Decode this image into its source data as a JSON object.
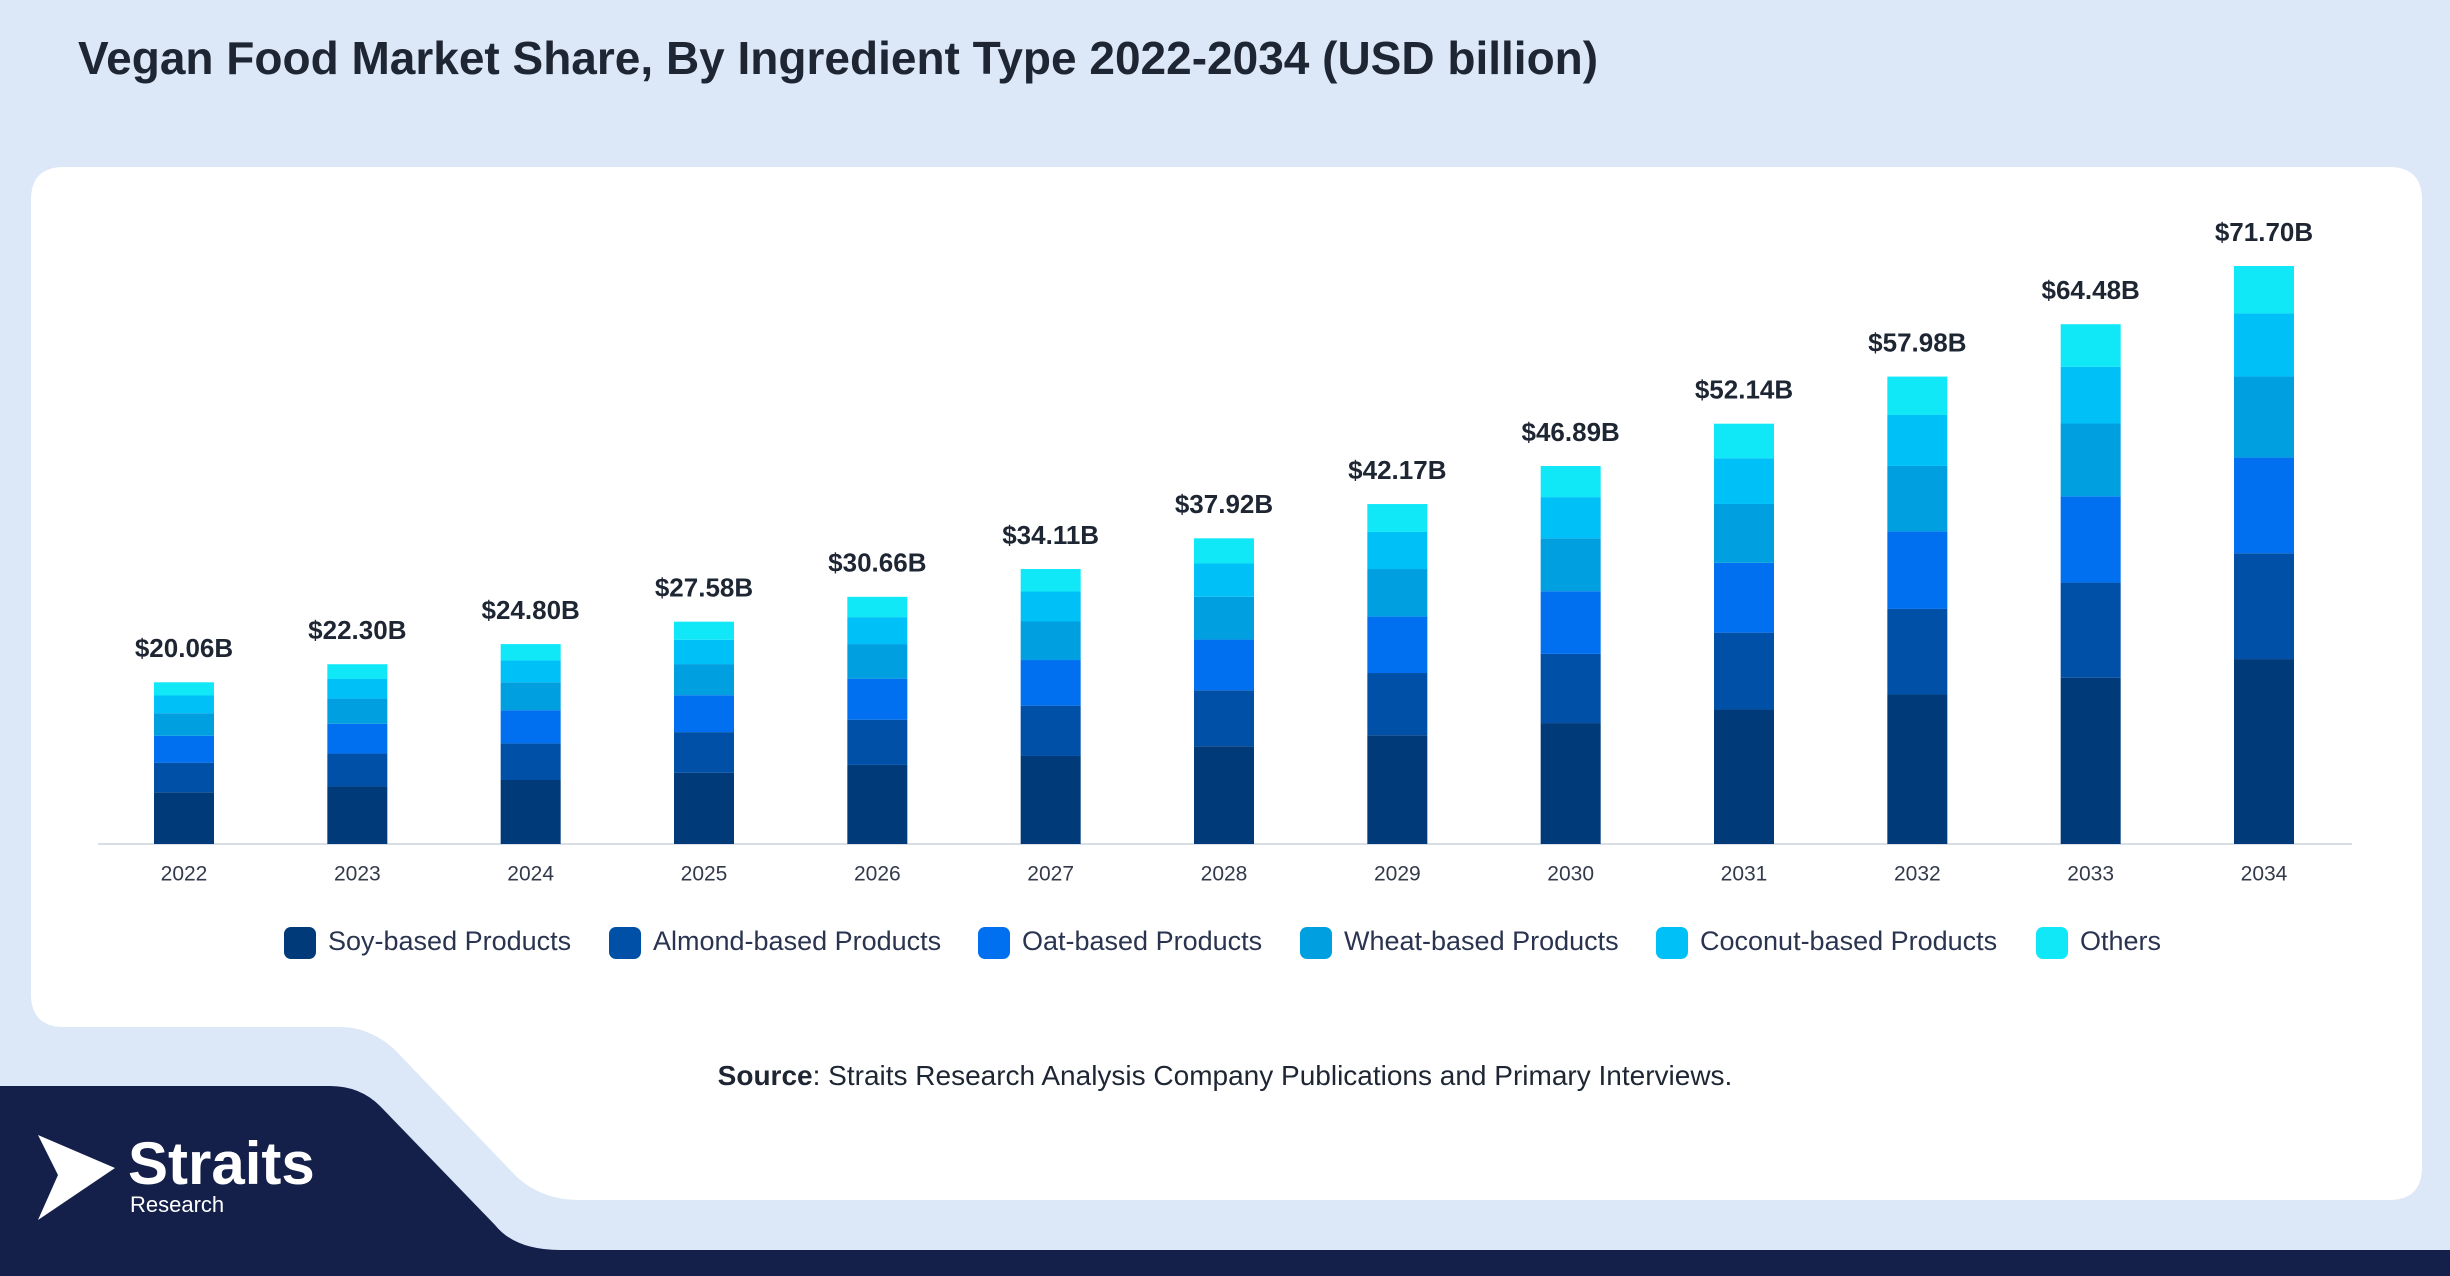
{
  "chart_data": {
    "type": "stacked_bar",
    "title": "Vegan Food Market Share, By Ingredient Type 2022-2034 (USD billion)",
    "categories": [
      "2022",
      "2023",
      "2024",
      "2025",
      "2026",
      "2027",
      "2028",
      "2029",
      "2030",
      "2031",
      "2032",
      "2033",
      "2034"
    ],
    "series": [
      {
        "name": "Soy-based Products",
        "color": "#003a78",
        "values": [
          6.42,
          7.14,
          7.94,
          8.83,
          9.81,
          10.92,
          12.13,
          13.49,
          15.0,
          16.68,
          18.55,
          20.63,
          22.94
        ]
      },
      {
        "name": "Almond-based Products",
        "color": "#0050a8",
        "values": [
          3.67,
          4.08,
          4.54,
          5.05,
          5.61,
          6.24,
          6.94,
          7.72,
          8.58,
          9.54,
          10.61,
          11.8,
          13.12
        ]
      },
      {
        "name": "Oat-based Products",
        "color": "#0070f0",
        "values": [
          3.33,
          3.7,
          4.12,
          4.58,
          5.09,
          5.66,
          6.29,
          7.0,
          7.78,
          8.66,
          9.62,
          10.7,
          11.9
        ]
      },
      {
        "name": "Wheat-based Products",
        "color": "#00a0e0",
        "values": [
          2.81,
          3.12,
          3.47,
          3.86,
          4.29,
          4.78,
          5.31,
          5.9,
          6.56,
          7.3,
          8.12,
          9.03,
          10.04
        ]
      },
      {
        "name": "Coconut-based Products",
        "color": "#00c0f8",
        "values": [
          2.19,
          2.43,
          2.7,
          3.01,
          3.34,
          3.72,
          4.13,
          4.6,
          5.11,
          5.68,
          6.32,
          7.03,
          7.82
        ]
      },
      {
        "name": "Others",
        "color": "#10e8f8",
        "values": [
          1.64,
          1.83,
          2.03,
          2.25,
          2.52,
          2.79,
          3.12,
          3.46,
          3.86,
          4.28,
          4.76,
          5.29,
          5.88
        ]
      }
    ],
    "totals": {
      "values": [
        20.06,
        22.3,
        24.8,
        27.58,
        30.66,
        34.11,
        37.92,
        42.17,
        46.89,
        52.14,
        57.98,
        64.48,
        71.7
      ],
      "value_labels": [
        "$20.06B",
        "$22.30B",
        "$24.80B",
        "$27.58B",
        "$30.66B",
        "$34.11B",
        "$37.92B",
        "$42.17B",
        "$46.89B",
        "$52.14B",
        "$57.98B",
        "$64.48B",
        "$71.70B"
      ]
    },
    "legend": "bottom",
    "source": {
      "label": "Source",
      "text": ": Straits Research Analysis Company Publications and Primary Interviews."
    }
  },
  "logo": {
    "name": "Straits",
    "tagline": "Research"
  }
}
